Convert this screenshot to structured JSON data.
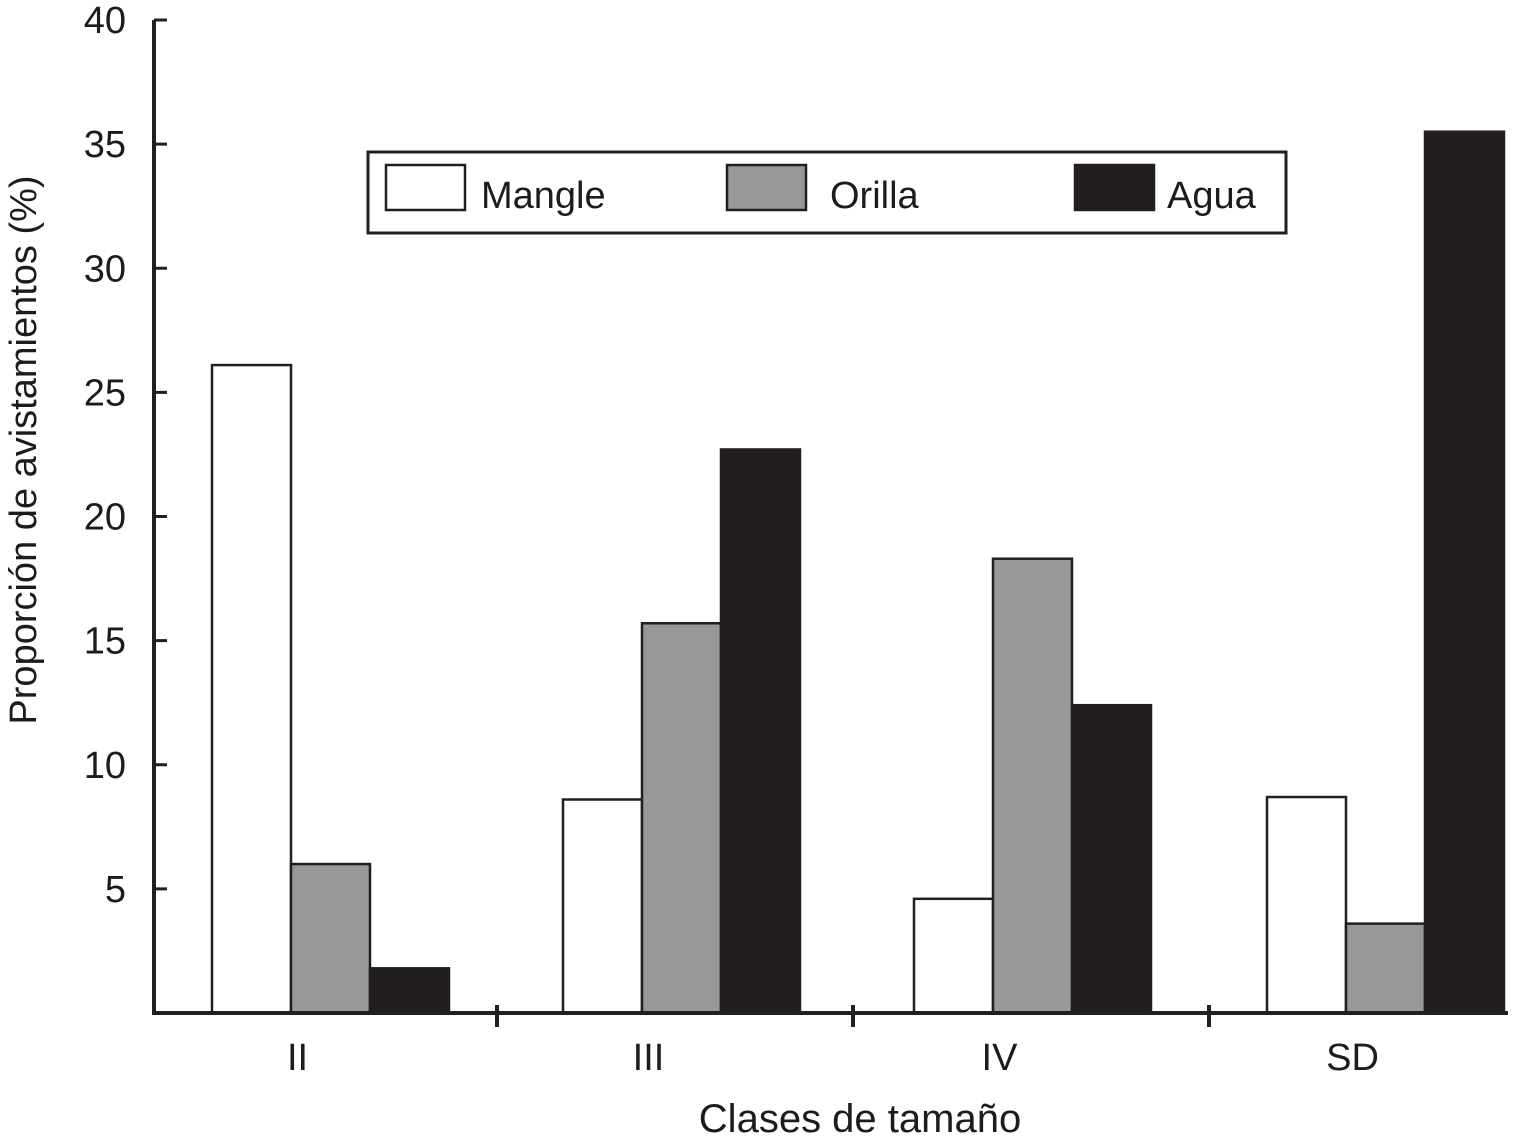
{
  "chart_data": {
    "type": "bar",
    "title": "",
    "xlabel": "Clases de tamaño",
    "ylabel": "Proporción de avistamientos (%)",
    "ylim": [
      0,
      40
    ],
    "yticks": [
      "5",
      "10",
      "15",
      "20",
      "25",
      "30",
      "35",
      "40"
    ],
    "categories": [
      "II",
      "III",
      "IV",
      "SD"
    ],
    "series": [
      {
        "name": "Mangle",
        "color": "#ffffff",
        "values": [
          26.1,
          8.6,
          4.6,
          8.7
        ]
      },
      {
        "name": "Orilla",
        "color": "#98989b",
        "values": [
          6.0,
          15.7,
          18.3,
          3.6
        ]
      },
      {
        "name": "Agua",
        "color": "#231f20",
        "values": [
          1.8,
          22.7,
          12.4,
          35.5
        ]
      }
    ],
    "legend": {
      "position": "top-center",
      "framed": true
    },
    "grid": false
  }
}
